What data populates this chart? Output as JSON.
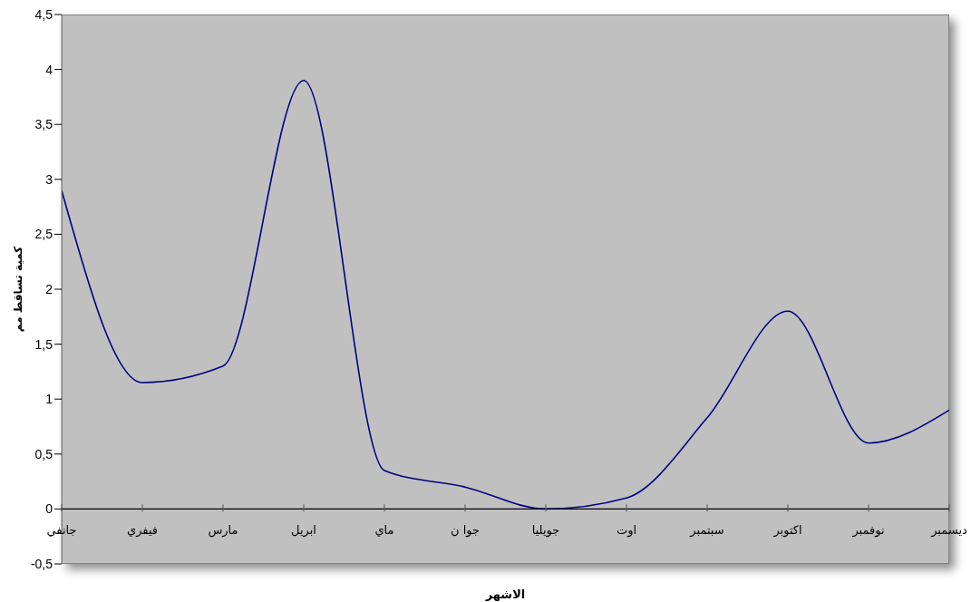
{
  "chart_data": {
    "type": "line",
    "xlabel": "الاشهر",
    "ylabel": "كمية تساقط مم",
    "categories": [
      "جانفي",
      "فيفري",
      "مارس",
      "ابريل",
      "ماي",
      "جوا ن",
      "جويليا",
      "اوت",
      "سبتمبر",
      "اكتوبر",
      "نوفمبر",
      "ديسمبر"
    ],
    "series": [
      {
        "color": "#000080",
        "values": [
          2.9,
          1.15,
          1.3,
          3.9,
          0.35,
          0.2,
          0,
          0.1,
          0.83,
          1.8,
          0.6,
          0.9
        ]
      }
    ],
    "ylim": [
      -0.5,
      4.5
    ],
    "yticks": [
      {
        "value": -0.5,
        "label": "-0,5"
      },
      0,
      {
        "value": 0.5,
        "label": "0,5"
      },
      1,
      {
        "value": 1.5,
        "label": "1,5"
      },
      2,
      {
        "value": 2.5,
        "label": "2,5"
      },
      3,
      {
        "value": 3.5,
        "label": "3,5"
      },
      4,
      {
        "value": 4.5,
        "label": "4,5"
      }
    ],
    "grid": false,
    "legend": false
  }
}
